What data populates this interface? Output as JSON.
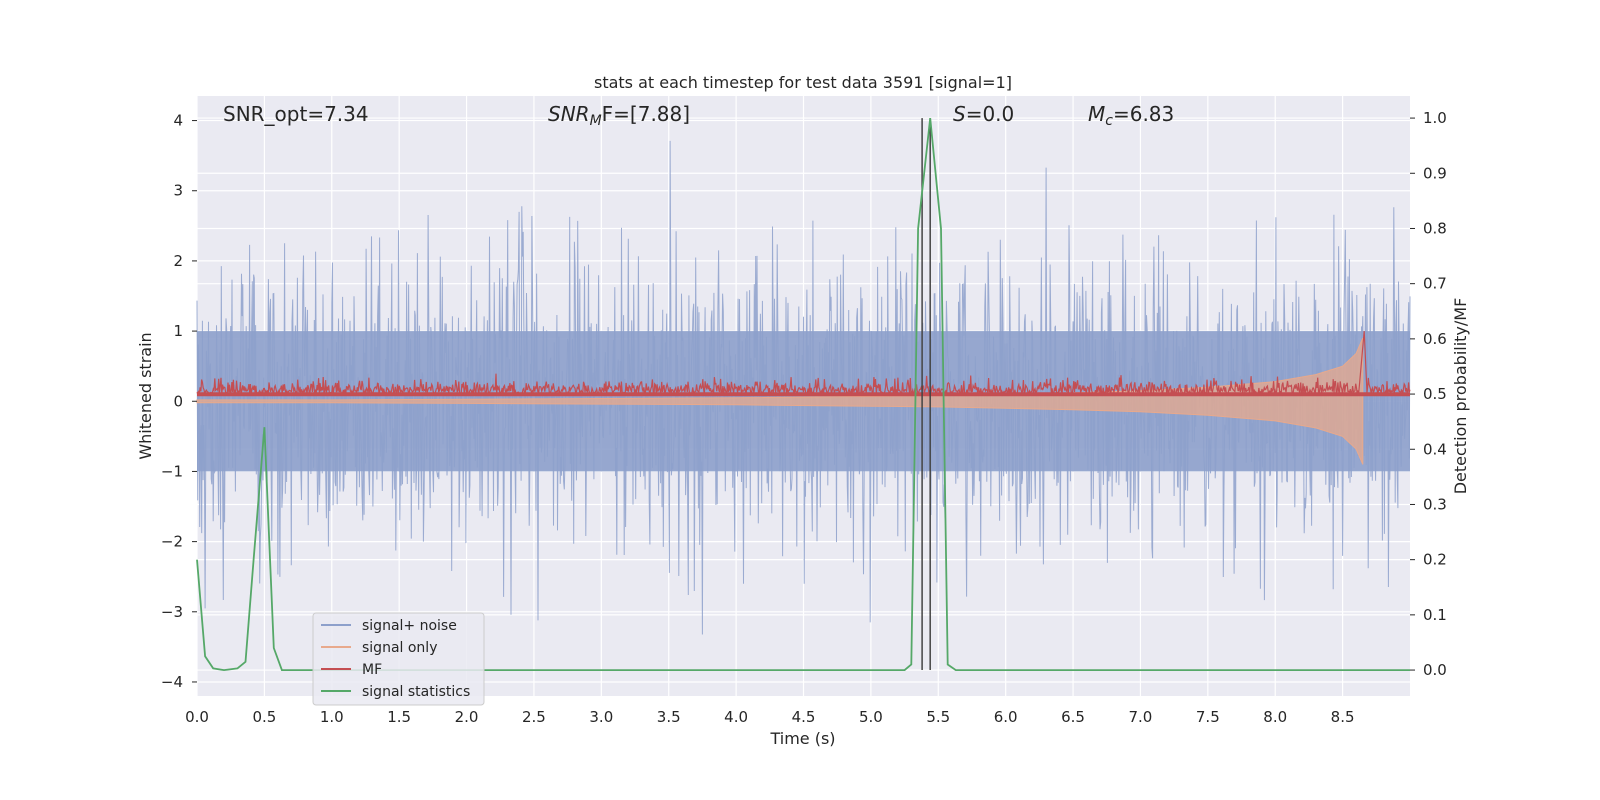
{
  "chart_data": {
    "type": "line",
    "title": "stats at each timestep for test data 3591 [signal=1]",
    "xlabel": "Time (s)",
    "ylabel_left": "Whitened strain",
    "ylabel_right": "Detection probability/MF",
    "xlim": [
      0.0,
      9.0
    ],
    "ylim_left": [
      -4.2,
      4.35
    ],
    "ylim_right": [
      -0.047,
      1.04
    ],
    "x_ticks": [
      "0.0",
      "0.5",
      "1.0",
      "1.5",
      "2.0",
      "2.5",
      "3.0",
      "3.5",
      "4.0",
      "4.5",
      "5.0",
      "5.5",
      "6.0",
      "6.5",
      "7.0",
      "7.5",
      "8.0",
      "8.5"
    ],
    "y_ticks_left": [
      "4",
      "3",
      "2",
      "1",
      "0",
      "−1",
      "−2",
      "−3",
      "−4"
    ],
    "y_ticks_right": [
      "1.0",
      "0.9",
      "0.8",
      "0.7",
      "0.6",
      "0.5",
      "0.4",
      "0.3",
      "0.2",
      "0.1",
      "0.0"
    ],
    "annotations": {
      "snr_opt": "SNR_opt=7.34",
      "snr_mf_prefix": "SNR",
      "snr_mf_sub": "M",
      "snr_mf_suffix": "F=[7.88]",
      "s_prefix": "S",
      "s_suffix": "=0.0",
      "mc_prefix": "M",
      "mc_sub": "c",
      "mc_suffix": "=6.83"
    },
    "vertical_lines": [
      5.38,
      5.44
    ],
    "legend_position": "lower-left",
    "grid": true,
    "series": [
      {
        "name": "signal+ noise",
        "axis": "left",
        "color": "#8da0cb",
        "style": "noise band",
        "range_approx": [
          -3.7,
          3.9
        ]
      },
      {
        "name": "signal only",
        "axis": "left",
        "color": "#e8a98c",
        "style": "chirp envelope",
        "points": [
          [
            0.0,
            0.02
          ],
          [
            1.0,
            0.02
          ],
          [
            2.0,
            0.03
          ],
          [
            3.0,
            0.04
          ],
          [
            4.0,
            0.05
          ],
          [
            5.0,
            0.07
          ],
          [
            5.5,
            0.08
          ],
          [
            6.0,
            0.1
          ],
          [
            6.5,
            0.12
          ],
          [
            7.0,
            0.15
          ],
          [
            7.5,
            0.2
          ],
          [
            8.0,
            0.28
          ],
          [
            8.3,
            0.38
          ],
          [
            8.5,
            0.5
          ],
          [
            8.6,
            0.68
          ],
          [
            8.65,
            0.9
          ]
        ]
      },
      {
        "name": "MF",
        "axis": "left",
        "color": "#c44e52",
        "style": "narrow noisy band",
        "range_approx": [
          -0.05,
          0.5
        ],
        "peak": [
          8.66,
          1.0
        ]
      },
      {
        "name": "signal statistics",
        "axis": "right",
        "color": "#55a868",
        "points": [
          [
            0.0,
            0.2
          ],
          [
            0.06,
            0.025
          ],
          [
            0.12,
            0.003
          ],
          [
            0.2,
            0.0
          ],
          [
            0.3,
            0.003
          ],
          [
            0.36,
            0.015
          ],
          [
            0.42,
            0.2
          ],
          [
            0.5,
            0.44
          ],
          [
            0.57,
            0.04
          ],
          [
            0.63,
            0.0
          ],
          [
            1.0,
            0.0
          ],
          [
            2.0,
            0.0
          ],
          [
            3.0,
            0.0
          ],
          [
            4.0,
            0.0
          ],
          [
            5.0,
            0.0
          ],
          [
            5.25,
            0.0
          ],
          [
            5.3,
            0.01
          ],
          [
            5.35,
            0.8
          ],
          [
            5.44,
            1.0
          ],
          [
            5.52,
            0.8
          ],
          [
            5.57,
            0.01
          ],
          [
            5.63,
            0.0
          ],
          [
            6.0,
            0.0
          ],
          [
            7.0,
            0.0
          ],
          [
            8.0,
            0.0
          ],
          [
            9.0,
            0.0
          ]
        ]
      }
    ]
  }
}
